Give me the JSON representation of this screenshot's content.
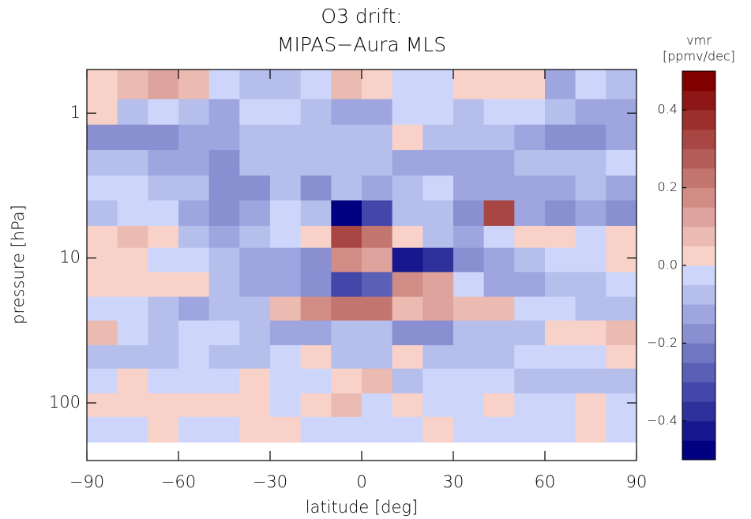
{
  "chart_data": {
    "type": "heatmap",
    "title": [
      "O3 drift:",
      "MIPAS−Aura MLS"
    ],
    "xlabel": "latitude [deg]",
    "ylabel": "pressure [hPa]",
    "colorbar_label": [
      "vmr",
      "[ppmv/dec]"
    ],
    "xbins": [
      -90,
      -80,
      -70,
      -60,
      -50,
      -40,
      -30,
      -20,
      -10,
      0,
      10,
      20,
      30,
      40,
      50,
      60,
      70,
      80,
      90
    ],
    "ybins": [
      0.5,
      0.8,
      1.2,
      1.8,
      2.7,
      4,
      6,
      8.5,
      12.5,
      18.5,
      27,
      40,
      58,
      86,
      125,
      187
    ],
    "xlim": [
      -90,
      90
    ],
    "ylim": [
      0.5,
      250
    ],
    "ylog": true,
    "xticks": [
      {
        "value": -90,
        "label": "−90"
      },
      {
        "value": -60,
        "label": "−60"
      },
      {
        "value": -30,
        "label": "−30"
      },
      0,
      30,
      60,
      90
    ],
    "yticks": [
      1,
      10,
      100
    ],
    "clim": [
      -0.5,
      0.5
    ],
    "levels": 20,
    "cticks": [
      {
        "value": -0.4,
        "label": "−0.4"
      },
      {
        "value": -0.2,
        "label": "−0.2"
      },
      {
        "value": 0,
        "label": "0.0"
      },
      0.2,
      0.4
    ],
    "cmap": {
      "negative": [
        "#cdd6fa",
        "#000080"
      ],
      "positive": [
        "#f8d2c8",
        "#800000"
      ]
    },
    "values": [
      [
        0.02,
        0.07,
        0.1,
        0.07,
        -0.05,
        -0.07,
        -0.07,
        -0.05,
        0.07,
        0.03,
        -0.03,
        -0.03,
        0.03,
        0.03,
        0.03,
        -0.15,
        -0.03,
        -0.1
      ],
      [
        0.02,
        -0.07,
        -0.04,
        -0.1,
        -0.12,
        -0.04,
        -0.04,
        -0.07,
        -0.15,
        -0.15,
        -0.05,
        -0.05,
        -0.07,
        -0.05,
        -0.05,
        -0.1,
        -0.15,
        -0.15
      ],
      [
        -0.17,
        -0.18,
        -0.18,
        -0.15,
        -0.15,
        -0.07,
        -0.07,
        -0.1,
        -0.07,
        -0.07,
        0.03,
        -0.07,
        -0.1,
        -0.1,
        -0.15,
        -0.17,
        -0.17,
        -0.12
      ],
      [
        -0.07,
        -0.1,
        -0.12,
        -0.15,
        -0.18,
        -0.07,
        -0.07,
        -0.07,
        -0.1,
        -0.1,
        -0.15,
        -0.12,
        -0.15,
        -0.12,
        -0.07,
        -0.07,
        -0.07,
        -0.05
      ],
      [
        -0.05,
        -0.05,
        -0.1,
        -0.07,
        -0.18,
        -0.18,
        -0.1,
        -0.18,
        -0.1,
        -0.15,
        -0.1,
        -0.04,
        -0.12,
        -0.12,
        -0.15,
        -0.15,
        -0.1,
        -0.12
      ],
      [
        -0.07,
        -0.05,
        -0.05,
        -0.12,
        -0.17,
        -0.15,
        -0.04,
        -0.07,
        -0.5,
        -0.35,
        -0.07,
        -0.1,
        -0.2,
        0.3,
        -0.15,
        -0.18,
        -0.15,
        -0.17
      ],
      [
        0.03,
        0.07,
        0.03,
        -0.07,
        -0.12,
        -0.1,
        -0.04,
        0.03,
        0.3,
        0.22,
        0.03,
        -0.07,
        -0.12,
        -0.04,
        0.03,
        0.03,
        -0.04,
        0.03
      ],
      [
        0.03,
        0.03,
        -0.04,
        -0.04,
        -0.1,
        -0.12,
        -0.12,
        -0.2,
        0.15,
        0.12,
        -0.4,
        -0.37,
        -0.17,
        -0.15,
        -0.07,
        -0.04,
        -0.04,
        0.03
      ],
      [
        0.03,
        0.03,
        0.03,
        0.03,
        -0.07,
        -0.15,
        -0.12,
        -0.2,
        -0.35,
        -0.3,
        0.15,
        0.12,
        -0.04,
        -0.12,
        -0.15,
        -0.07,
        -0.07,
        -0.04
      ],
      [
        -0.04,
        -0.04,
        -0.1,
        -0.12,
        -0.1,
        -0.07,
        0.05,
        0.17,
        0.2,
        0.2,
        0.07,
        0.1,
        0.05,
        0.05,
        -0.04,
        -0.04,
        -0.1,
        -0.1
      ],
      [
        0.07,
        -0.04,
        -0.07,
        -0.04,
        -0.04,
        -0.07,
        -0.12,
        -0.15,
        -0.1,
        -0.07,
        -0.17,
        -0.2,
        -0.1,
        -0.07,
        -0.07,
        0.03,
        0.03,
        0.07
      ],
      [
        -0.1,
        -0.1,
        -0.07,
        -0.04,
        -0.07,
        -0.07,
        -0.04,
        0.03,
        -0.1,
        -0.1,
        0.03,
        -0.07,
        -0.07,
        -0.07,
        -0.04,
        -0.04,
        -0.04,
        0.03
      ],
      [
        -0.04,
        0.03,
        -0.04,
        -0.04,
        -0.04,
        0.03,
        -0.04,
        -0.04,
        0.03,
        0.05,
        -0.07,
        -0.04,
        -0.04,
        -0.04,
        -0.07,
        -0.07,
        -0.07,
        -0.1
      ],
      [
        0.03,
        0.03,
        0.03,
        0.03,
        0.03,
        0.03,
        -0.04,
        0.03,
        0.07,
        -0.04,
        0.03,
        -0.04,
        -0.04,
        0.03,
        -0.04,
        -0.04,
        0.03,
        -0.04
      ],
      [
        -0.04,
        -0.04,
        0.03,
        -0.04,
        -0.04,
        0.03,
        0.03,
        -0.04,
        -0.04,
        -0.04,
        -0.04,
        0.03,
        -0.04,
        -0.04,
        -0.04,
        -0.04,
        0.03,
        -0.04
      ]
    ]
  }
}
